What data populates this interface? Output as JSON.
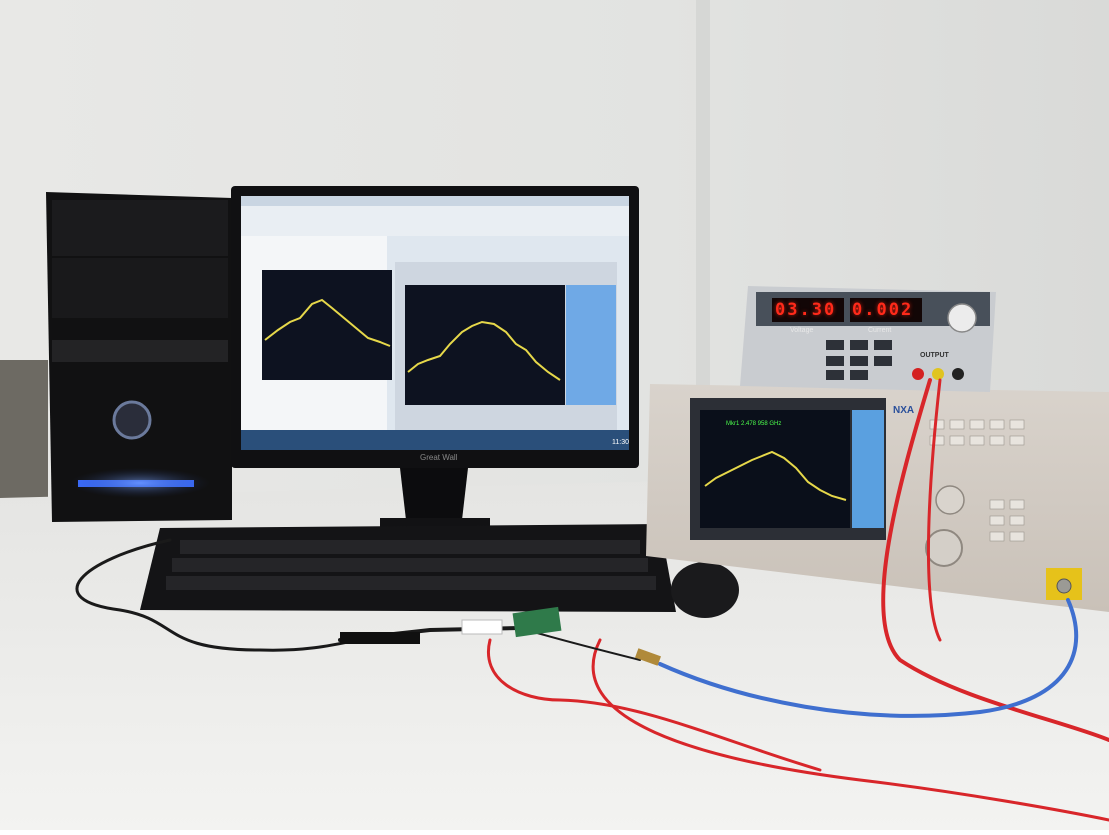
{
  "monitor": {
    "brand": "Great Wall",
    "taskbar_clock": "11:30"
  },
  "power_supply": {
    "voltage_display": "03.30",
    "current_display": "0.002",
    "voltage_label": "Voltage",
    "current_label": "Current",
    "output_label": "OUTPUT"
  },
  "analyzer": {
    "brand": "NXA",
    "marker_readout": "Mkr1 2.478 958 GHz"
  },
  "colors": {
    "wall": "#e4e5e3",
    "desk": "#eeeeec",
    "spectrum_trace": "#e6d84a",
    "led_display": "#ff2a1a",
    "cable_red": "#d8262a",
    "cable_blue": "#3f6fcf",
    "pc_accent": "#2f6cff"
  }
}
